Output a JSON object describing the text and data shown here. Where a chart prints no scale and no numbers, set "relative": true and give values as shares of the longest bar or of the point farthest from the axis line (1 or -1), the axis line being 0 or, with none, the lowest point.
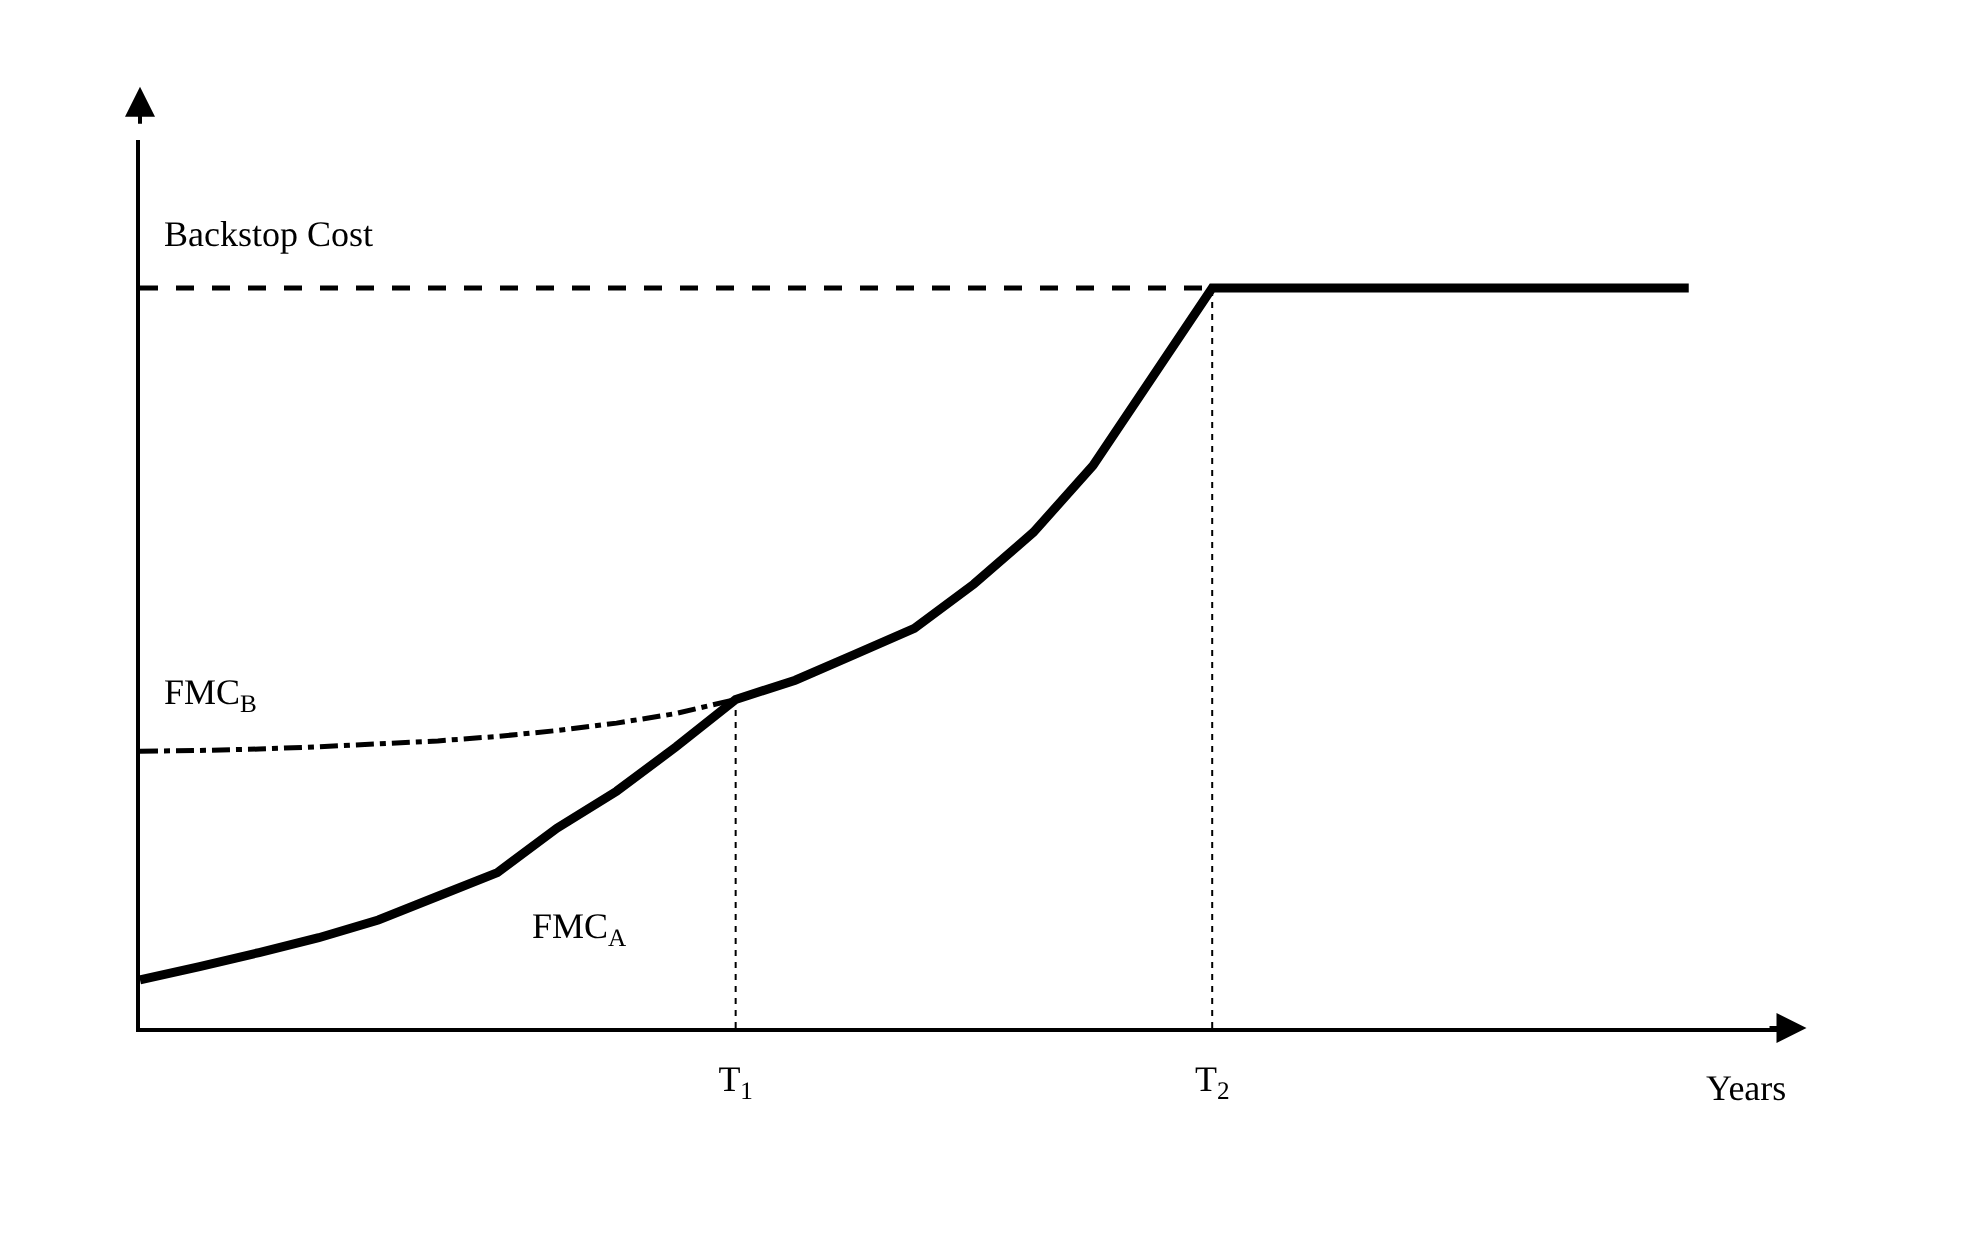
{
  "chart_data": {
    "type": "line",
    "relative": true,
    "xlabel": "Years",
    "categories": [
      null,
      null,
      null,
      null,
      null,
      null,
      null,
      null,
      null,
      null,
      "T$_{1}$",
      null,
      null,
      null,
      null,
      null,
      null,
      null,
      "T$_{2}$",
      null,
      null,
      null,
      null,
      null,
      null,
      null,
      null
    ],
    "tick_labels": "x",
    "grid": false,
    "legend": false,
    "marker": "none",
    "series": [
      {
        "name": "FMC$_{A}$",
        "color": "#000000",
        "line_style": "solid",
        "values": [
          0.065,
          0.083,
          0.102,
          0.122,
          0.146,
          0.178,
          0.21,
          0.27,
          0.32,
          0.38,
          0.444,
          0.47,
          0.505,
          0.54,
          0.6,
          0.67,
          0.76,
          0.88,
          1,
          1,
          1,
          1,
          1,
          1,
          1,
          1,
          1
        ]
      },
      {
        "name": "FMC$_{B}$",
        "color": "#000000",
        "line_style": "dashdot",
        "values": [
          0.374,
          0.375,
          0.377,
          0.38,
          0.384,
          0.388,
          0.394,
          0.402,
          0.412,
          0.425,
          0.444,
          null,
          null,
          null,
          null,
          null,
          null,
          null,
          null,
          null,
          null,
          null,
          null,
          null,
          null,
          null,
          null
        ]
      },
      {
        "name": "Backstop Cost",
        "color": "#000000",
        "line_style": "dashed",
        "values": [
          1,
          1,
          1,
          1,
          1,
          1,
          1,
          1,
          1,
          1,
          1,
          1,
          1,
          1,
          1,
          1,
          1,
          1,
          1,
          null,
          null,
          null,
          null,
          null,
          null,
          null,
          null
        ]
      }
    ],
    "ref_lines": [
      {
        "axis": "x",
        "value": "T$_{1}$",
        "line_style": "dotted",
        "color": "#000000"
      },
      {
        "axis": "x",
        "value": "T$_{2}$",
        "line_style": "dotted",
        "color": "#000000"
      }
    ]
  }
}
